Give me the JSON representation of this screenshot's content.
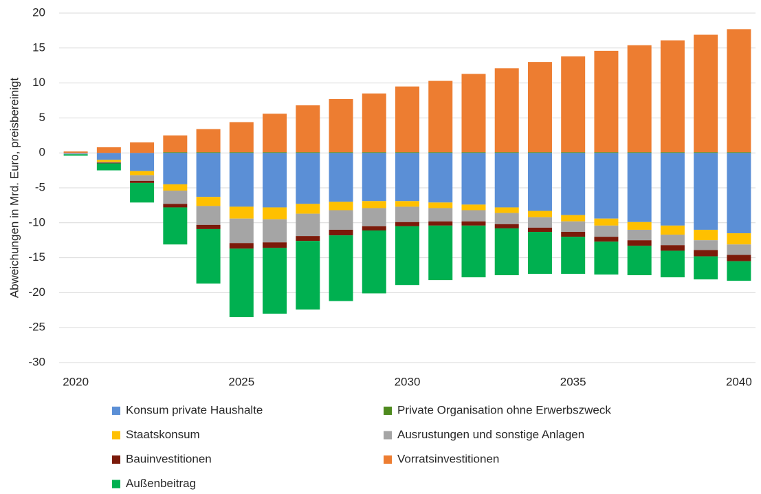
{
  "chart_data": {
    "type": "bar",
    "stacked": true,
    "y_label": "Abweichungen in Mrd. Euro, preisbereinigt",
    "categories": [
      "2020",
      null,
      null,
      null,
      null,
      "2025",
      null,
      null,
      null,
      null,
      "2030",
      null,
      null,
      null,
      null,
      "2035",
      null,
      null,
      null,
      null,
      "2040"
    ],
    "ylim": [
      -30,
      20
    ],
    "yticks": [
      -30,
      -25,
      -20,
      -15,
      -10,
      -5,
      0,
      5,
      10,
      15,
      20
    ],
    "grid": true,
    "series": [
      {
        "name": "Konsum private Haushalte",
        "color": "#5b8fd6",
        "values": [
          -0.1,
          -1.0,
          -2.6,
          -4.5,
          -6.3,
          -7.7,
          -7.8,
          -7.3,
          -7.0,
          -6.9,
          -6.9,
          -7.1,
          -7.4,
          -7.8,
          -8.3,
          -8.9,
          -9.4,
          -9.9,
          -10.4,
          -11.0,
          -11.5
        ]
      },
      {
        "name": "Private Organisation ohne Erwerbszweck",
        "color": "#4e8a1e",
        "values": [
          0,
          0,
          0,
          0.1,
          0.1,
          0.1,
          0.1,
          0.1,
          0.1,
          0.1,
          0.1,
          0.1,
          0.1,
          0.1,
          0.1,
          0.1,
          0.1,
          0.1,
          0.1,
          0.1,
          0.1
        ]
      },
      {
        "name": "Staatskonsum",
        "color": "#ffc000",
        "values": [
          0,
          -0.3,
          -0.6,
          -0.9,
          -1.3,
          -1.7,
          -1.7,
          -1.4,
          -1.2,
          -1.0,
          -0.8,
          -0.8,
          -0.8,
          -0.8,
          -0.9,
          -0.9,
          -1.0,
          -1.1,
          -1.3,
          -1.5,
          -1.6
        ]
      },
      {
        "name": "Ausrustungen und sonstige Anlagen",
        "color": "#a5a5a5",
        "values": [
          -0.1,
          -0.1,
          -0.8,
          -1.9,
          -2.7,
          -3.5,
          -3.3,
          -3.2,
          -2.8,
          -2.6,
          -2.2,
          -1.9,
          -1.6,
          -1.6,
          -1.5,
          -1.5,
          -1.6,
          -1.5,
          -1.5,
          -1.4,
          -1.5
        ]
      },
      {
        "name": "Bauinvestitionen",
        "color": "#7b1a0a",
        "values": [
          0,
          -0.1,
          -0.3,
          -0.5,
          -0.6,
          -0.8,
          -0.8,
          -0.7,
          -0.8,
          -0.6,
          -0.6,
          -0.6,
          -0.6,
          -0.6,
          -0.6,
          -0.7,
          -0.7,
          -0.8,
          -0.8,
          -0.9,
          -0.9
        ]
      },
      {
        "name": "Vorratsinvestitionen",
        "color": "#ed7d31",
        "values": [
          0.2,
          0.8,
          1.5,
          2.4,
          3.3,
          4.3,
          5.5,
          6.7,
          7.6,
          8.4,
          9.4,
          10.2,
          11.2,
          12.0,
          12.9,
          13.7,
          14.5,
          15.3,
          16.0,
          16.8,
          17.6
        ]
      },
      {
        "name": "Außenbeitrag",
        "color": "#00b050",
        "values": [
          -0.2,
          -1.0,
          -2.8,
          -5.3,
          -7.8,
          -9.8,
          -9.4,
          -9.8,
          -9.4,
          -9.0,
          -8.4,
          -7.8,
          -7.4,
          -6.7,
          -6.0,
          -5.3,
          -4.7,
          -4.2,
          -3.8,
          -3.3,
          -2.8
        ]
      }
    ]
  }
}
